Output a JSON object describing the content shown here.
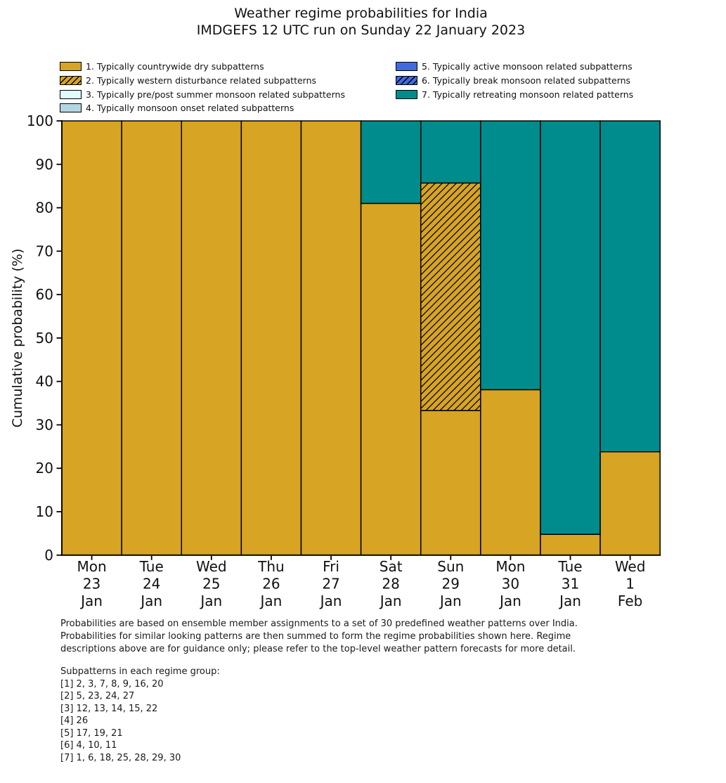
{
  "title": {
    "line1": "Weather regime probabilities for India",
    "line2": "IMDGEFS 12 UTC run on Sunday 22 January 2023"
  },
  "chart_data": {
    "type": "bar",
    "stacked": true,
    "title": "Weather regime probabilities for India",
    "subtitle": "IMDGEFS 12 UTC run on Sunday 22 January 2023",
    "xlabel": "",
    "ylabel": "Cumulative probability (%)",
    "ylim": [
      0,
      100
    ],
    "yticks": [
      0,
      10,
      20,
      30,
      40,
      50,
      60,
      70,
      80,
      90,
      100
    ],
    "grid": false,
    "legend_position": "top, two columns",
    "bar_edge_color": "#000000",
    "categories": [
      [
        "Mon",
        "23",
        "Jan"
      ],
      [
        "Tue",
        "24",
        "Jan"
      ],
      [
        "Wed",
        "25",
        "Jan"
      ],
      [
        "Thu",
        "26",
        "Jan"
      ],
      [
        "Fri",
        "27",
        "Jan"
      ],
      [
        "Sat",
        "28",
        "Jan"
      ],
      [
        "Sun",
        "29",
        "Jan"
      ],
      [
        "Mon",
        "30",
        "Jan"
      ],
      [
        "Tue",
        "31",
        "Jan"
      ],
      [
        "Wed",
        "1",
        "Feb"
      ]
    ],
    "series": [
      {
        "name": "1. Typically countrywide dry subpatterns",
        "color": "#d7a423",
        "hatch": false,
        "values": [
          100,
          100,
          100,
          100,
          100,
          81,
          33.3,
          38.1,
          4.8,
          23.8
        ]
      },
      {
        "name": "2. Typically western disturbance related subpatterns",
        "color": "#d7a423",
        "hatch": true,
        "values": [
          0,
          0,
          0,
          0,
          0,
          0,
          52.4,
          0,
          0,
          0
        ]
      },
      {
        "name": "3. Typically pre/post summer monsoon related subpatterns",
        "color": "#e0fbfb",
        "hatch": false,
        "values": [
          0,
          0,
          0,
          0,
          0,
          0,
          0,
          0,
          0,
          0
        ]
      },
      {
        "name": "4. Typically monsoon onset related subpatterns",
        "color": "#b4d6e2",
        "hatch": false,
        "values": [
          0,
          0,
          0,
          0,
          0,
          0,
          0,
          0,
          0,
          0
        ]
      },
      {
        "name": "5. Typically active monsoon related subpatterns",
        "color": "#4169e1",
        "hatch": false,
        "values": [
          0,
          0,
          0,
          0,
          0,
          0,
          0,
          0,
          0,
          0
        ]
      },
      {
        "name": "6. Typically break monsoon related subpatterns",
        "color": "#4169e1",
        "hatch": true,
        "values": [
          0,
          0,
          0,
          0,
          0,
          0,
          0,
          0,
          0,
          0
        ]
      },
      {
        "name": "7. Typically retreating monsoon related patterns",
        "color": "#008c8d",
        "hatch": false,
        "values": [
          0,
          0,
          0,
          0,
          0,
          19,
          14.3,
          61.9,
          95.2,
          76.2
        ]
      }
    ]
  },
  "footer": {
    "lines": [
      "Probabilities are based on ensemble member assignments to a set of 30 predefined weather patterns over India.",
      "Probabilities for similar looking patterns are then summed to form the regime probabilities shown here. Regime",
      "descriptions above are for guidance only; please refer to the top-level weather pattern forecasts for more detail."
    ]
  },
  "subpatterns": {
    "heading": "Subpatterns in each regime group:",
    "groups": [
      "[1] 2, 3, 7, 8, 9, 16, 20",
      "[2] 5, 23, 24, 27",
      "[3] 12, 13, 14, 15, 22",
      "[4] 26",
      "[5] 17, 19, 21",
      "[6] 4, 10, 11",
      "[7] 1, 6, 18, 25, 28, 29, 30"
    ]
  }
}
